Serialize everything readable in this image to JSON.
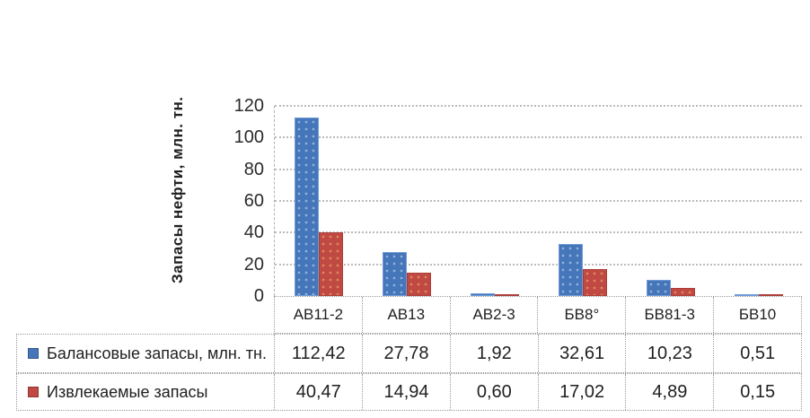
{
  "chart_data": {
    "type": "bar",
    "title": "",
    "ylabel": "Запасы нефти, млн. тн.",
    "xlabel": "",
    "ylim": [
      0,
      120
    ],
    "ytick_step": 20,
    "grid": true,
    "legend_position": "table-row-headers-left",
    "categories": [
      "АВ11-2",
      "АВ13",
      "АВ2-3",
      "БВ8°",
      "БВ81-3",
      "БВ10"
    ],
    "series": [
      {
        "name": "Балансовые запасы, млн. тн.",
        "color": "#4576b9",
        "values": [
          112.42,
          27.78,
          1.92,
          32.61,
          10.23,
          0.51
        ]
      },
      {
        "name": "Извлекаемые запасы",
        "color": "#c04a43",
        "values": [
          40.47,
          14.94,
          0.6,
          17.02,
          4.89,
          0.15
        ]
      }
    ]
  },
  "table": {
    "rows": [
      {
        "label": "Балансовые запасы, млн. тн.",
        "marker_color": "#4576b9",
        "cells": [
          "112,42",
          "27,78",
          "1,92",
          "32,61",
          "10,23",
          "0,51"
        ]
      },
      {
        "label": "Извлекаемые запасы",
        "marker_color": "#c04a43",
        "cells": [
          "40,47",
          "14,94",
          "0,60",
          "17,02",
          "4,89",
          "0,15"
        ]
      }
    ]
  },
  "colors": {
    "series_blue": "#4576b9",
    "series_red": "#c04a43",
    "gridline": "#bdbab8",
    "table_border": "#9a9a9a",
    "text": "#1f1f1f"
  }
}
